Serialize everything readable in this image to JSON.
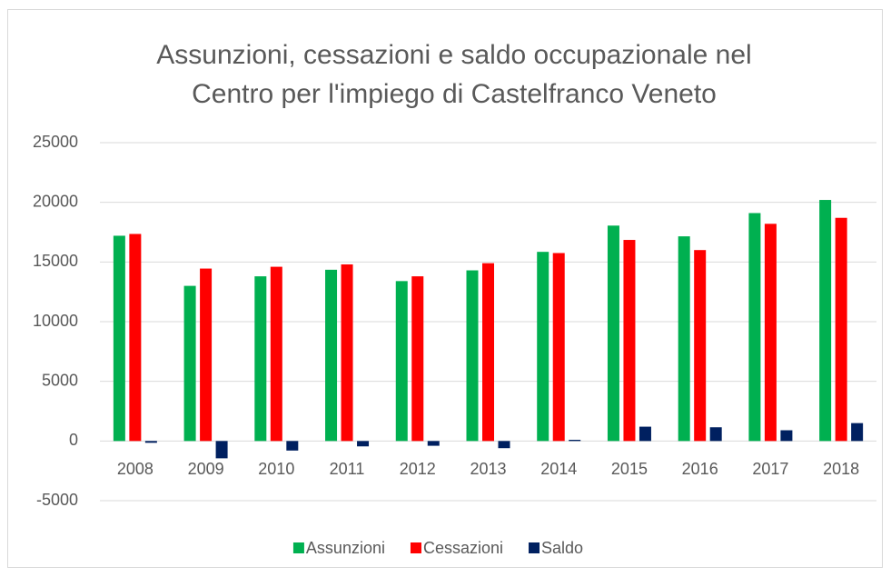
{
  "chart_data": {
    "type": "bar",
    "title": [
      "Assunzioni, cessazioni e saldo occupazionale nel",
      "Centro per l'impiego di Castelfranco Veneto"
    ],
    "categories": [
      "2008",
      "2009",
      "2010",
      "2011",
      "2012",
      "2013",
      "2014",
      "2015",
      "2016",
      "2017",
      "2018"
    ],
    "series": [
      {
        "name": "Assunzioni",
        "color": "#00b050",
        "values": [
          17200,
          13000,
          13800,
          14350,
          13400,
          14300,
          15850,
          18050,
          17150,
          19100,
          20200
        ]
      },
      {
        "name": "Cessazioni",
        "color": "#ff0000",
        "values": [
          17350,
          14450,
          14600,
          14800,
          13800,
          14900,
          15750,
          16850,
          16000,
          18200,
          18700
        ]
      },
      {
        "name": "Saldo",
        "color": "#002060",
        "values": [
          -150,
          -1450,
          -800,
          -450,
          -400,
          -600,
          100,
          1200,
          1150,
          900,
          1500
        ]
      }
    ],
    "ylim": [
      -5000,
      25000
    ],
    "yticks": [
      -5000,
      0,
      5000,
      10000,
      15000,
      20000,
      25000
    ],
    "grid": true,
    "legend": "bottom"
  }
}
